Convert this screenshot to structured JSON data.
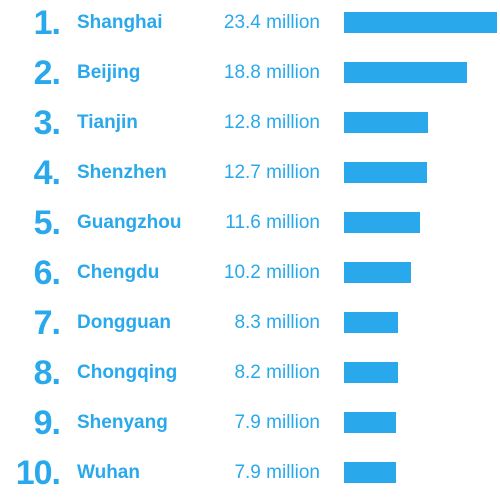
{
  "colors": {
    "accent": "#29a8ec"
  },
  "chart_data": {
    "type": "bar",
    "orientation": "horizontal",
    "categories": [
      "Shanghai",
      "Beijing",
      "Tianjin",
      "Shenzhen",
      "Guangzhou",
      "Chengdu",
      "Dongguan",
      "Chongqing",
      "Shenyang",
      "Wuhan"
    ],
    "values": [
      23.4,
      18.8,
      12.8,
      12.7,
      11.6,
      10.2,
      8.3,
      8.2,
      7.9,
      7.9
    ],
    "value_unit": "million",
    "ranks": [
      "1.",
      "2.",
      "3.",
      "4.",
      "5.",
      "6.",
      "7.",
      "8.",
      "9.",
      "10."
    ],
    "value_labels": [
      "23.4 million",
      "18.8 million",
      "12.8 million",
      "12.7 million",
      "11.6 million",
      "10.2 million",
      "8.3 million",
      "8.2 million",
      "7.9 million",
      "7.9 million"
    ],
    "xlim": [
      0,
      23.4
    ],
    "grid": false
  }
}
